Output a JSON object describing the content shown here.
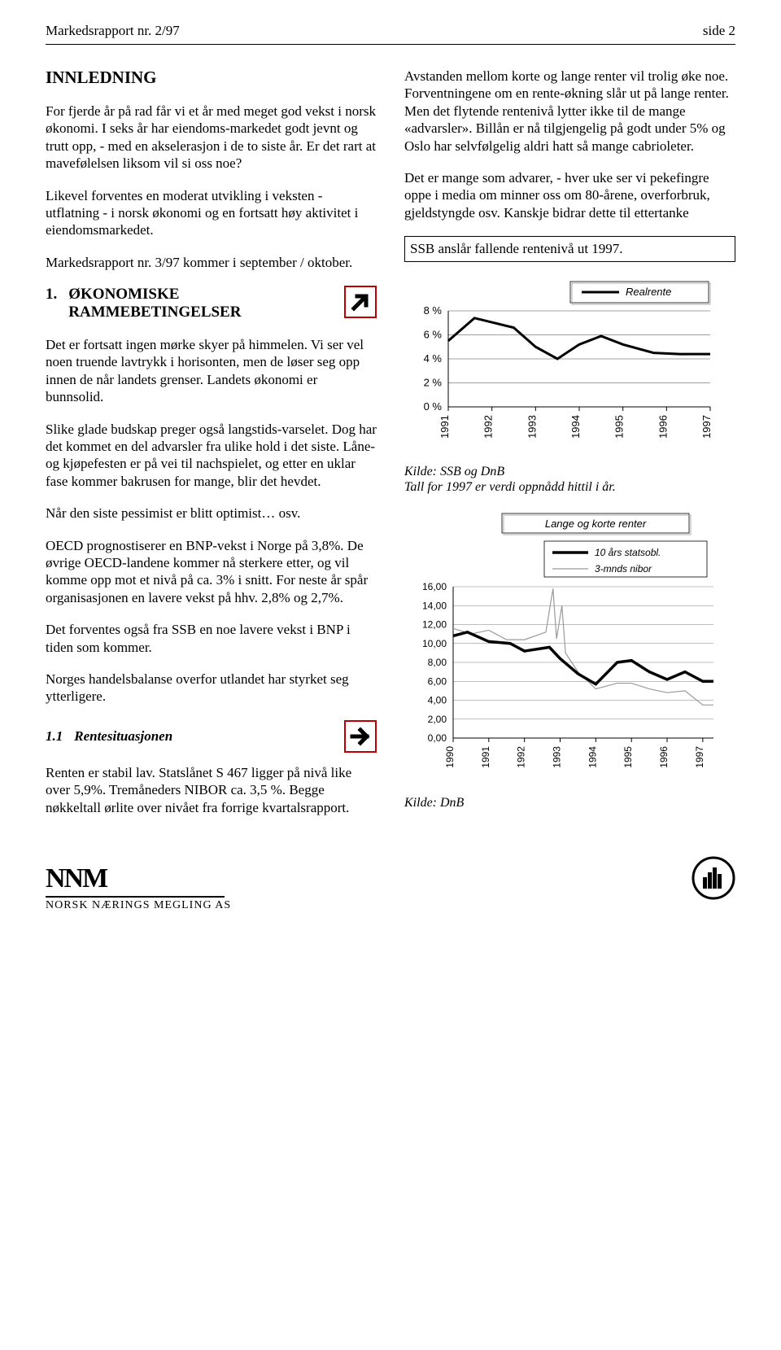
{
  "header": {
    "left": "Markedsrapport nr. 2/97",
    "right": "side 2"
  },
  "intro_title": "INNLEDNING",
  "left_paras": [
    "For fjerde år på rad får vi et år med meget god vekst i norsk økonomi. I seks år har eiendoms-markedet godt jevnt og trutt opp, - med en akselerasjon i de to siste år. Er det rart at mavefølelsen liksom vil si oss noe?",
    "Likevel forventes en moderat utvikling i veksten - utflatning -  i norsk økonomi og en fortsatt høy aktivitet i eiendomsmarkedet.",
    "Markedsrapport nr. 3/97 kommer i september / oktober."
  ],
  "section1": {
    "num": "1.",
    "title": "ØKONOMISKE RAMMEBETINGELSER"
  },
  "left_paras2": [
    "Det er fortsatt ingen mørke skyer på himmelen. Vi ser vel noen truende lavtrykk i horisonten, men de løser seg opp innen de når landets grenser. Landets økonomi er bunnsolid.",
    "Slike glade budskap preger også langstids-varselet. Dog har det kommet en del advarsler fra ulike hold i det siste. Låne- og kjøpefesten er på vei til nachspielet, og etter en uklar fase kommer bakrusen for mange, blir det hevdet.",
    "Når den siste pessimist er blitt optimist… osv.",
    "OECD prognostiserer en BNP-vekst i Norge på 3,8%. De øvrige OECD-landene kommer nå sterkere etter, og vil komme opp mot et nivå på ca. 3% i snitt. For neste år spår organisasjonen en lavere vekst på hhv. 2,8% og 2,7%.",
    "Det forventes også fra SSB en noe lavere vekst i BNP i tiden som kommer.",
    "Norges handelsbalanse overfor utlandet har styrket seg ytterligere."
  ],
  "sub11": {
    "num": "1.1",
    "title": "Rentesituasjonen"
  },
  "left_paras3": [
    "Renten er stabil lav. Statslånet S 467 ligger på nivå like over 5,9%. Tremåneders NIBOR ca. 3,5 %. Begge nøkkeltall ørlite over nivået fra forrige kvartalsrapport."
  ],
  "right_paras": [
    "Avstanden mellom korte og lange renter vil trolig øke noe. Forventningene om en rente-økning slår ut på lange renter. Men det flytende rentenivå lytter ikke til de mange «advarsler». Billån er nå tilgjengelig på godt under 5% og Oslo har selvfølgelig aldri hatt så mange cabrioleter.",
    "Det er mange som advarer, - hver uke ser vi pekefingre oppe i media om minner oss om 80-årene, overforbruk, gjeldstyngde osv. Kanskje bidrar dette til ettertanke"
  ],
  "boxed_text": "SSB anslår fallende rentenivå ut 1997.",
  "chart1": {
    "type": "line",
    "legend": "Realrente",
    "x_labels": [
      "1991",
      "1992",
      "1993",
      "1994",
      "1995",
      "1996",
      "1997"
    ],
    "y_ticks": [
      "0 %",
      "2 %",
      "4 %",
      "6 %",
      "8 %"
    ],
    "ylim": [
      0,
      8
    ],
    "series": {
      "color": "#000000",
      "width": 3,
      "points": [
        [
          1991,
          5.5
        ],
        [
          1991.6,
          7.4
        ],
        [
          1992.5,
          6.6
        ],
        [
          1993,
          5.0
        ],
        [
          1993.5,
          4.0
        ],
        [
          1994,
          5.2
        ],
        [
          1994.5,
          5.9
        ],
        [
          1995,
          5.2
        ],
        [
          1995.7,
          4.5
        ],
        [
          1996.3,
          4.4
        ],
        [
          1997,
          4.4
        ]
      ]
    },
    "grid_color": "#808080",
    "bg": "#ffffff",
    "caption_lines": [
      "Kilde: SSB og DnB",
      "Tall for 1997 er verdi oppnådd  hittil i år."
    ]
  },
  "chart2": {
    "type": "line",
    "title": "Lange og korte renter",
    "legend": [
      {
        "label": "10  års statsobl.",
        "color": "#000000",
        "width": 3.5
      },
      {
        "label": "3-mnds nibor",
        "color": "#9a9a9a",
        "width": 1.2
      }
    ],
    "x_labels": [
      "1990",
      "1991",
      "1992",
      "1993",
      "1994",
      "1995",
      "1996",
      "1997"
    ],
    "y_ticks": [
      "0,00",
      "2,00",
      "4,00",
      "6,00",
      "8,00",
      "10,00",
      "12,00",
      "14,00",
      "16,00"
    ],
    "ylim": [
      0,
      16
    ],
    "series_long": [
      [
        1990,
        10.8
      ],
      [
        1990.4,
        11.2
      ],
      [
        1991,
        10.2
      ],
      [
        1991.6,
        10.0
      ],
      [
        1992,
        9.2
      ],
      [
        1992.7,
        9.6
      ],
      [
        1993,
        8.4
      ],
      [
        1993.5,
        6.8
      ],
      [
        1994,
        5.7
      ],
      [
        1994.6,
        8.0
      ],
      [
        1995,
        8.2
      ],
      [
        1995.5,
        7.0
      ],
      [
        1996,
        6.2
      ],
      [
        1996.5,
        7.0
      ],
      [
        1997,
        6.0
      ],
      [
        1997.3,
        6.0
      ]
    ],
    "series_short": [
      [
        1990,
        11.6
      ],
      [
        1990.5,
        11.0
      ],
      [
        1991,
        11.4
      ],
      [
        1991.5,
        10.4
      ],
      [
        1992,
        10.4
      ],
      [
        1992.6,
        11.2
      ],
      [
        1992.8,
        15.8
      ],
      [
        1992.9,
        10.5
      ],
      [
        1993.05,
        14.0
      ],
      [
        1993.15,
        9.0
      ],
      [
        1993.5,
        7.0
      ],
      [
        1994,
        5.2
      ],
      [
        1994.6,
        5.8
      ],
      [
        1995,
        5.8
      ],
      [
        1995.5,
        5.2
      ],
      [
        1996,
        4.8
      ],
      [
        1996.5,
        5.0
      ],
      [
        1997,
        3.5
      ],
      [
        1997.3,
        3.5
      ]
    ],
    "grid_color": "#808080",
    "caption": "Kilde: DnB"
  },
  "footer": {
    "logo_top": "NNM",
    "logo_sub": "NORSK NÆRINGS MEGLING AS"
  }
}
